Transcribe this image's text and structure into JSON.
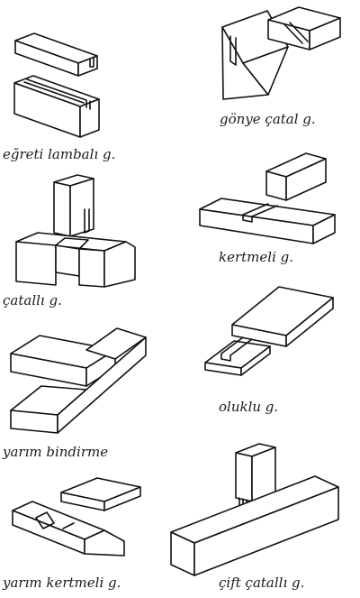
{
  "captions": {
    "egreti_lambali": "eğreti lambalı g.",
    "gonye_catal": "gönye çatal g.",
    "catalli": "çatallı g.",
    "kertmeli": "kertmeli g.",
    "yarim_bindirme": "yarım bindirme",
    "oluklu": "oluklu g.",
    "yarim_kertmeli": "yarım kertmeli g.",
    "cift_catalli": "çift çatallı g."
  }
}
